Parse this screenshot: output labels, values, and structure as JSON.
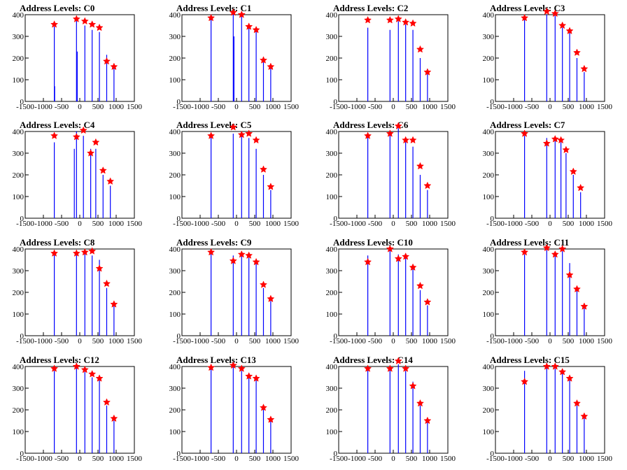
{
  "figure": {
    "colors": {
      "background": "#ffffff",
      "axis": "#000000",
      "histogram": "#0000ff",
      "peak_marker": "#ff0000"
    },
    "marker_icon": "star-icon"
  },
  "chart_data": [
    {
      "type": "bar",
      "title": "Address Levels: C0",
      "xlim": [
        -1500,
        1500
      ],
      "ylim": [
        0,
        400
      ],
      "xticks": [
        -1500,
        -1000,
        -500,
        0,
        500,
        1000,
        1500
      ],
      "yticks": [
        0,
        100,
        200,
        300,
        400
      ],
      "spikes": [
        [
          -700,
          345
        ],
        [
          -690,
          70
        ],
        [
          -90,
          380
        ],
        [
          -70,
          230
        ],
        [
          140,
          350
        ],
        [
          340,
          330
        ],
        [
          540,
          320
        ],
        [
          740,
          215
        ],
        [
          940,
          165
        ]
      ],
      "peaks": [
        [
          -700,
          355
        ],
        [
          -90,
          380
        ],
        [
          140,
          370
        ],
        [
          340,
          355
        ],
        [
          540,
          340
        ],
        [
          740,
          185
        ],
        [
          940,
          160
        ]
      ]
    },
    {
      "type": "bar",
      "title": "Address Levels: C1",
      "xlim": [
        -1500,
        1500
      ],
      "ylim": [
        0,
        400
      ],
      "xticks": [
        -1500,
        -1000,
        -500,
        0,
        500,
        1000,
        1500
      ],
      "yticks": [
        0,
        100,
        200,
        300,
        400
      ],
      "spikes": [
        [
          -700,
          385
        ],
        [
          -90,
          405
        ],
        [
          -70,
          300
        ],
        [
          140,
          395
        ],
        [
          340,
          340
        ],
        [
          540,
          325
        ],
        [
          740,
          205
        ],
        [
          940,
          160
        ]
      ],
      "peaks": [
        [
          -700,
          385
        ],
        [
          -90,
          410
        ],
        [
          140,
          400
        ],
        [
          340,
          345
        ],
        [
          540,
          330
        ],
        [
          740,
          190
        ],
        [
          940,
          160
        ]
      ]
    },
    {
      "type": "bar",
      "title": "Address Levels: C2",
      "xlim": [
        -1500,
        1500
      ],
      "ylim": [
        0,
        400
      ],
      "xticks": [
        -1500,
        -1000,
        -500,
        0,
        500,
        1000,
        1500
      ],
      "yticks": [
        0,
        100,
        200,
        300,
        400
      ],
      "spikes": [
        [
          -700,
          340
        ],
        [
          -90,
          330
        ],
        [
          140,
          370
        ],
        [
          340,
          355
        ],
        [
          540,
          330
        ],
        [
          740,
          200
        ],
        [
          940,
          150
        ]
      ],
      "peaks": [
        [
          -700,
          375
        ],
        [
          -90,
          375
        ],
        [
          140,
          380
        ],
        [
          340,
          365
        ],
        [
          540,
          360
        ],
        [
          740,
          240
        ],
        [
          940,
          135
        ]
      ]
    },
    {
      "type": "bar",
      "title": "Address Levels: C3",
      "xlim": [
        -1500,
        1500
      ],
      "ylim": [
        0,
        400
      ],
      "xticks": [
        -1500,
        -1000,
        -500,
        0,
        500,
        1000,
        1500
      ],
      "yticks": [
        0,
        100,
        200,
        300,
        400
      ],
      "spikes": [
        [
          -700,
          380
        ],
        [
          -90,
          400
        ],
        [
          140,
          395
        ],
        [
          340,
          340
        ],
        [
          540,
          320
        ],
        [
          740,
          200
        ],
        [
          940,
          135
        ]
      ],
      "peaks": [
        [
          -700,
          385
        ],
        [
          -90,
          415
        ],
        [
          140,
          405
        ],
        [
          340,
          350
        ],
        [
          540,
          325
        ],
        [
          740,
          225
        ],
        [
          940,
          150
        ]
      ]
    },
    {
      "type": "bar",
      "title": "Address Levels: C4",
      "xlim": [
        -1500,
        1500
      ],
      "ylim": [
        0,
        400
      ],
      "xticks": [
        -1500,
        -1000,
        -500,
        0,
        500,
        1000,
        1500
      ],
      "yticks": [
        0,
        100,
        200,
        300,
        400
      ],
      "spikes": [
        [
          -700,
          350
        ],
        [
          -150,
          320
        ],
        [
          -90,
          400
        ],
        [
          100,
          380
        ],
        [
          300,
          320
        ],
        [
          440,
          320
        ],
        [
          640,
          200
        ],
        [
          840,
          150
        ]
      ],
      "peaks": [
        [
          -700,
          380
        ],
        [
          -90,
          375
        ],
        [
          100,
          405
        ],
        [
          300,
          300
        ],
        [
          440,
          350
        ],
        [
          640,
          220
        ],
        [
          840,
          170
        ]
      ]
    },
    {
      "type": "bar",
      "title": "Address Levels: C5",
      "xlim": [
        -1500,
        1500
      ],
      "ylim": [
        0,
        400
      ],
      "xticks": [
        -1500,
        -1000,
        -500,
        0,
        500,
        1000,
        1500
      ],
      "yticks": [
        0,
        100,
        200,
        300,
        400
      ],
      "spikes": [
        [
          -700,
          375
        ],
        [
          -90,
          390
        ],
        [
          140,
          380
        ],
        [
          340,
          370
        ],
        [
          540,
          320
        ],
        [
          740,
          200
        ],
        [
          940,
          130
        ]
      ],
      "peaks": [
        [
          -700,
          380
        ],
        [
          -90,
          420
        ],
        [
          140,
          385
        ],
        [
          340,
          390
        ],
        [
          540,
          360
        ],
        [
          740,
          225
        ],
        [
          940,
          145
        ]
      ]
    },
    {
      "type": "bar",
      "title": "Address Levels: C6",
      "xlim": [
        -1500,
        1500
      ],
      "ylim": [
        0,
        400
      ],
      "xticks": [
        -1500,
        -1000,
        -500,
        0,
        500,
        1000,
        1500
      ],
      "yticks": [
        0,
        100,
        200,
        300,
        400
      ],
      "spikes": [
        [
          -700,
          380
        ],
        [
          -90,
          390
        ],
        [
          140,
          415
        ],
        [
          340,
          360
        ],
        [
          540,
          330
        ],
        [
          740,
          200
        ],
        [
          940,
          130
        ]
      ],
      "peaks": [
        [
          -700,
          380
        ],
        [
          -90,
          390
        ],
        [
          140,
          425
        ],
        [
          340,
          360
        ],
        [
          540,
          360
        ],
        [
          740,
          240
        ],
        [
          940,
          150
        ]
      ]
    },
    {
      "type": "bar",
      "title": "Address Levels: C7",
      "xlim": [
        -1500,
        1500
      ],
      "ylim": [
        0,
        400
      ],
      "xticks": [
        -1500,
        -1000,
        -500,
        0,
        500,
        1000,
        1500
      ],
      "yticks": [
        0,
        100,
        200,
        300,
        400
      ],
      "spikes": [
        [
          -700,
          380
        ],
        [
          -90,
          370
        ],
        [
          140,
          370
        ],
        [
          300,
          350
        ],
        [
          440,
          300
        ],
        [
          640,
          200
        ],
        [
          840,
          120
        ]
      ],
      "peaks": [
        [
          -700,
          390
        ],
        [
          -90,
          345
        ],
        [
          140,
          365
        ],
        [
          300,
          360
        ],
        [
          440,
          315
        ],
        [
          640,
          215
        ],
        [
          840,
          140
        ]
      ]
    },
    {
      "type": "bar",
      "title": "Address Levels: C8",
      "xlim": [
        -1500,
        1500
      ],
      "ylim": [
        0,
        400
      ],
      "xticks": [
        -1500,
        -1000,
        -500,
        0,
        500,
        1000,
        1500
      ],
      "yticks": [
        0,
        100,
        200,
        300,
        400
      ],
      "spikes": [
        [
          -700,
          375
        ],
        [
          -90,
          380
        ],
        [
          140,
          380
        ],
        [
          340,
          370
        ],
        [
          540,
          350
        ],
        [
          740,
          220
        ],
        [
          940,
          140
        ]
      ],
      "peaks": [
        [
          -700,
          380
        ],
        [
          -90,
          380
        ],
        [
          140,
          385
        ],
        [
          340,
          390
        ],
        [
          540,
          310
        ],
        [
          740,
          240
        ],
        [
          940,
          145
        ]
      ]
    },
    {
      "type": "bar",
      "title": "Address Levels: C9",
      "xlim": [
        -1500,
        1500
      ],
      "ylim": [
        0,
        400
      ],
      "xticks": [
        -1500,
        -1000,
        -500,
        0,
        500,
        1000,
        1500
      ],
      "yticks": [
        0,
        100,
        200,
        300,
        400
      ],
      "spikes": [
        [
          -700,
          380
        ],
        [
          -90,
          370
        ],
        [
          140,
          370
        ],
        [
          340,
          360
        ],
        [
          540,
          340
        ],
        [
          740,
          220
        ],
        [
          940,
          160
        ]
      ],
      "peaks": [
        [
          -700,
          385
        ],
        [
          -90,
          345
        ],
        [
          140,
          375
        ],
        [
          340,
          370
        ],
        [
          540,
          340
        ],
        [
          740,
          235
        ],
        [
          940,
          170
        ]
      ]
    },
    {
      "type": "bar",
      "title": "Address Levels: C10",
      "xlim": [
        -1500,
        1500
      ],
      "ylim": [
        0,
        400
      ],
      "xticks": [
        -1500,
        -1000,
        -500,
        0,
        500,
        1000,
        1500
      ],
      "yticks": [
        0,
        100,
        200,
        300,
        400
      ],
      "spikes": [
        [
          -700,
          370
        ],
        [
          -90,
          395
        ],
        [
          140,
          375
        ],
        [
          340,
          360
        ],
        [
          540,
          320
        ],
        [
          740,
          210
        ],
        [
          940,
          140
        ]
      ],
      "peaks": [
        [
          -700,
          340
        ],
        [
          -90,
          400
        ],
        [
          140,
          355
        ],
        [
          340,
          365
        ],
        [
          540,
          315
        ],
        [
          740,
          230
        ],
        [
          940,
          155
        ]
      ]
    },
    {
      "type": "bar",
      "title": "Address Levels: C11",
      "xlim": [
        -1500,
        1500
      ],
      "ylim": [
        0,
        400
      ],
      "xticks": [
        -1500,
        -1000,
        -500,
        0,
        500,
        1000,
        1500
      ],
      "yticks": [
        0,
        100,
        200,
        300,
        400
      ],
      "spikes": [
        [
          -700,
          375
        ],
        [
          -90,
          395
        ],
        [
          140,
          385
        ],
        [
          340,
          390
        ],
        [
          540,
          335
        ],
        [
          740,
          210
        ],
        [
          940,
          130
        ]
      ],
      "peaks": [
        [
          -700,
          385
        ],
        [
          -90,
          405
        ],
        [
          140,
          375
        ],
        [
          340,
          400
        ],
        [
          540,
          280
        ],
        [
          740,
          215
        ],
        [
          940,
          135
        ]
      ]
    },
    {
      "type": "bar",
      "title": "Address Levels: C12",
      "xlim": [
        -1500,
        1500
      ],
      "ylim": [
        0,
        400
      ],
      "xticks": [
        -1500,
        -1000,
        -500,
        0,
        500,
        1000,
        1500
      ],
      "yticks": [
        0,
        100,
        200,
        300,
        400
      ],
      "spikes": [
        [
          -700,
          380
        ],
        [
          -90,
          395
        ],
        [
          140,
          375
        ],
        [
          340,
          350
        ],
        [
          540,
          340
        ],
        [
          740,
          220
        ],
        [
          940,
          150
        ]
      ],
      "peaks": [
        [
          -700,
          390
        ],
        [
          -90,
          400
        ],
        [
          140,
          385
        ],
        [
          340,
          365
        ],
        [
          540,
          345
        ],
        [
          740,
          235
        ],
        [
          940,
          160
        ]
      ]
    },
    {
      "type": "bar",
      "title": "Address Levels: C13",
      "xlim": [
        -1500,
        1500
      ],
      "ylim": [
        0,
        400
      ],
      "xticks": [
        -1500,
        -1000,
        -500,
        0,
        500,
        1000,
        1500
      ],
      "yticks": [
        0,
        100,
        200,
        300,
        400
      ],
      "spikes": [
        [
          -700,
          390
        ],
        [
          -90,
          400
        ],
        [
          140,
          380
        ],
        [
          340,
          370
        ],
        [
          540,
          340
        ],
        [
          740,
          210
        ],
        [
          940,
          150
        ]
      ],
      "peaks": [
        [
          -700,
          395
        ],
        [
          -90,
          405
        ],
        [
          140,
          390
        ],
        [
          340,
          355
        ],
        [
          540,
          345
        ],
        [
          740,
          210
        ],
        [
          940,
          155
        ]
      ]
    },
    {
      "type": "bar",
      "title": "Address Levels: C14",
      "xlim": [
        -1500,
        1500
      ],
      "ylim": [
        0,
        400
      ],
      "xticks": [
        -1500,
        -1000,
        -500,
        0,
        500,
        1000,
        1500
      ],
      "yticks": [
        0,
        100,
        200,
        300,
        400
      ],
      "spikes": [
        [
          -700,
          385
        ],
        [
          -90,
          390
        ],
        [
          140,
          410
        ],
        [
          340,
          380
        ],
        [
          540,
          330
        ],
        [
          740,
          220
        ],
        [
          940,
          150
        ]
      ],
      "peaks": [
        [
          -700,
          390
        ],
        [
          -90,
          390
        ],
        [
          140,
          425
        ],
        [
          340,
          390
        ],
        [
          540,
          310
        ],
        [
          740,
          230
        ],
        [
          940,
          150
        ]
      ]
    },
    {
      "type": "bar",
      "title": "Address Levels: C15",
      "xlim": [
        -1500,
        1500
      ],
      "ylim": [
        0,
        400
      ],
      "xticks": [
        -1500,
        -1000,
        -500,
        0,
        500,
        1000,
        1500
      ],
      "yticks": [
        0,
        100,
        200,
        300,
        400
      ],
      "spikes": [
        [
          -700,
          380
        ],
        [
          -90,
          400
        ],
        [
          140,
          390
        ],
        [
          340,
          370
        ],
        [
          540,
          340
        ],
        [
          740,
          220
        ],
        [
          940,
          165
        ]
      ],
      "peaks": [
        [
          -700,
          330
        ],
        [
          -90,
          400
        ],
        [
          140,
          400
        ],
        [
          340,
          375
        ],
        [
          540,
          345
        ],
        [
          740,
          230
        ],
        [
          940,
          170
        ]
      ]
    }
  ]
}
